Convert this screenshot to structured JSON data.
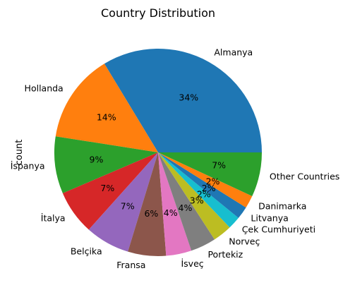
{
  "chart_data": {
    "type": "pie",
    "title": "Country Distribution",
    "ylabel": "count",
    "slices": [
      {
        "label": "Almanya",
        "value": 34,
        "pct_label": "34%",
        "color": "#1f77b4"
      },
      {
        "label": "Hollanda",
        "value": 14,
        "pct_label": "14%",
        "color": "#ff7f0e"
      },
      {
        "label": "İspanya",
        "value": 9,
        "pct_label": "9%",
        "color": "#2ca02c"
      },
      {
        "label": "İtalya",
        "value": 7,
        "pct_label": "7%",
        "color": "#d62728"
      },
      {
        "label": "Belçika",
        "value": 7,
        "pct_label": "7%",
        "color": "#9467bd"
      },
      {
        "label": "Fransa",
        "value": 6,
        "pct_label": "6%",
        "color": "#8c564b"
      },
      {
        "label": "İsveç",
        "value": 4,
        "pct_label": "4%",
        "color": "#e377c2"
      },
      {
        "label": "Portekiz",
        "value": 4,
        "pct_label": "4%",
        "color": "#7f7f7f"
      },
      {
        "label": "Norveç",
        "value": 3,
        "pct_label": "3%",
        "color": "#bcbd22"
      },
      {
        "label": "Çek Cumhuriyeti",
        "value": 2,
        "pct_label": "2%",
        "color": "#17becf"
      },
      {
        "label": "Litvanya",
        "value": 2,
        "pct_label": "2%",
        "color": "#1f77b4"
      },
      {
        "label": "Danimarka",
        "value": 2,
        "pct_label": "2%",
        "color": "#ff7f0e"
      },
      {
        "label": "Other Countries",
        "value": 7,
        "pct_label": "7%",
        "color": "#2ca02c"
      }
    ]
  }
}
